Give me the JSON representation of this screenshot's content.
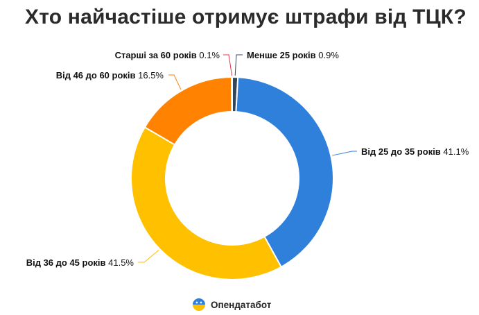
{
  "chart_data": {
    "type": "pie",
    "variant": "donut",
    "title": "Хто найчастіше отримує штрафи від ТЦК?",
    "categories": [
      "Менше 25 років",
      "Від 25 до 35 років",
      "Від 36 до 45 років",
      "Від 46 до 60 років",
      "Старші за 60 років"
    ],
    "values": [
      0.9,
      41.1,
      41.5,
      16.5,
      0.1
    ],
    "value_labels": [
      "0.9%",
      "41.1%",
      "41.5%",
      "16.5%",
      "0.1%"
    ],
    "unit": "%",
    "colors": [
      "#33475b",
      "#2f80db",
      "#ffc000",
      "#ff8300",
      "#e8324b"
    ],
    "legend": "none"
  },
  "footer": {
    "brand": "Опендатабот",
    "logo_icon": "opendatabot-logo-icon"
  }
}
